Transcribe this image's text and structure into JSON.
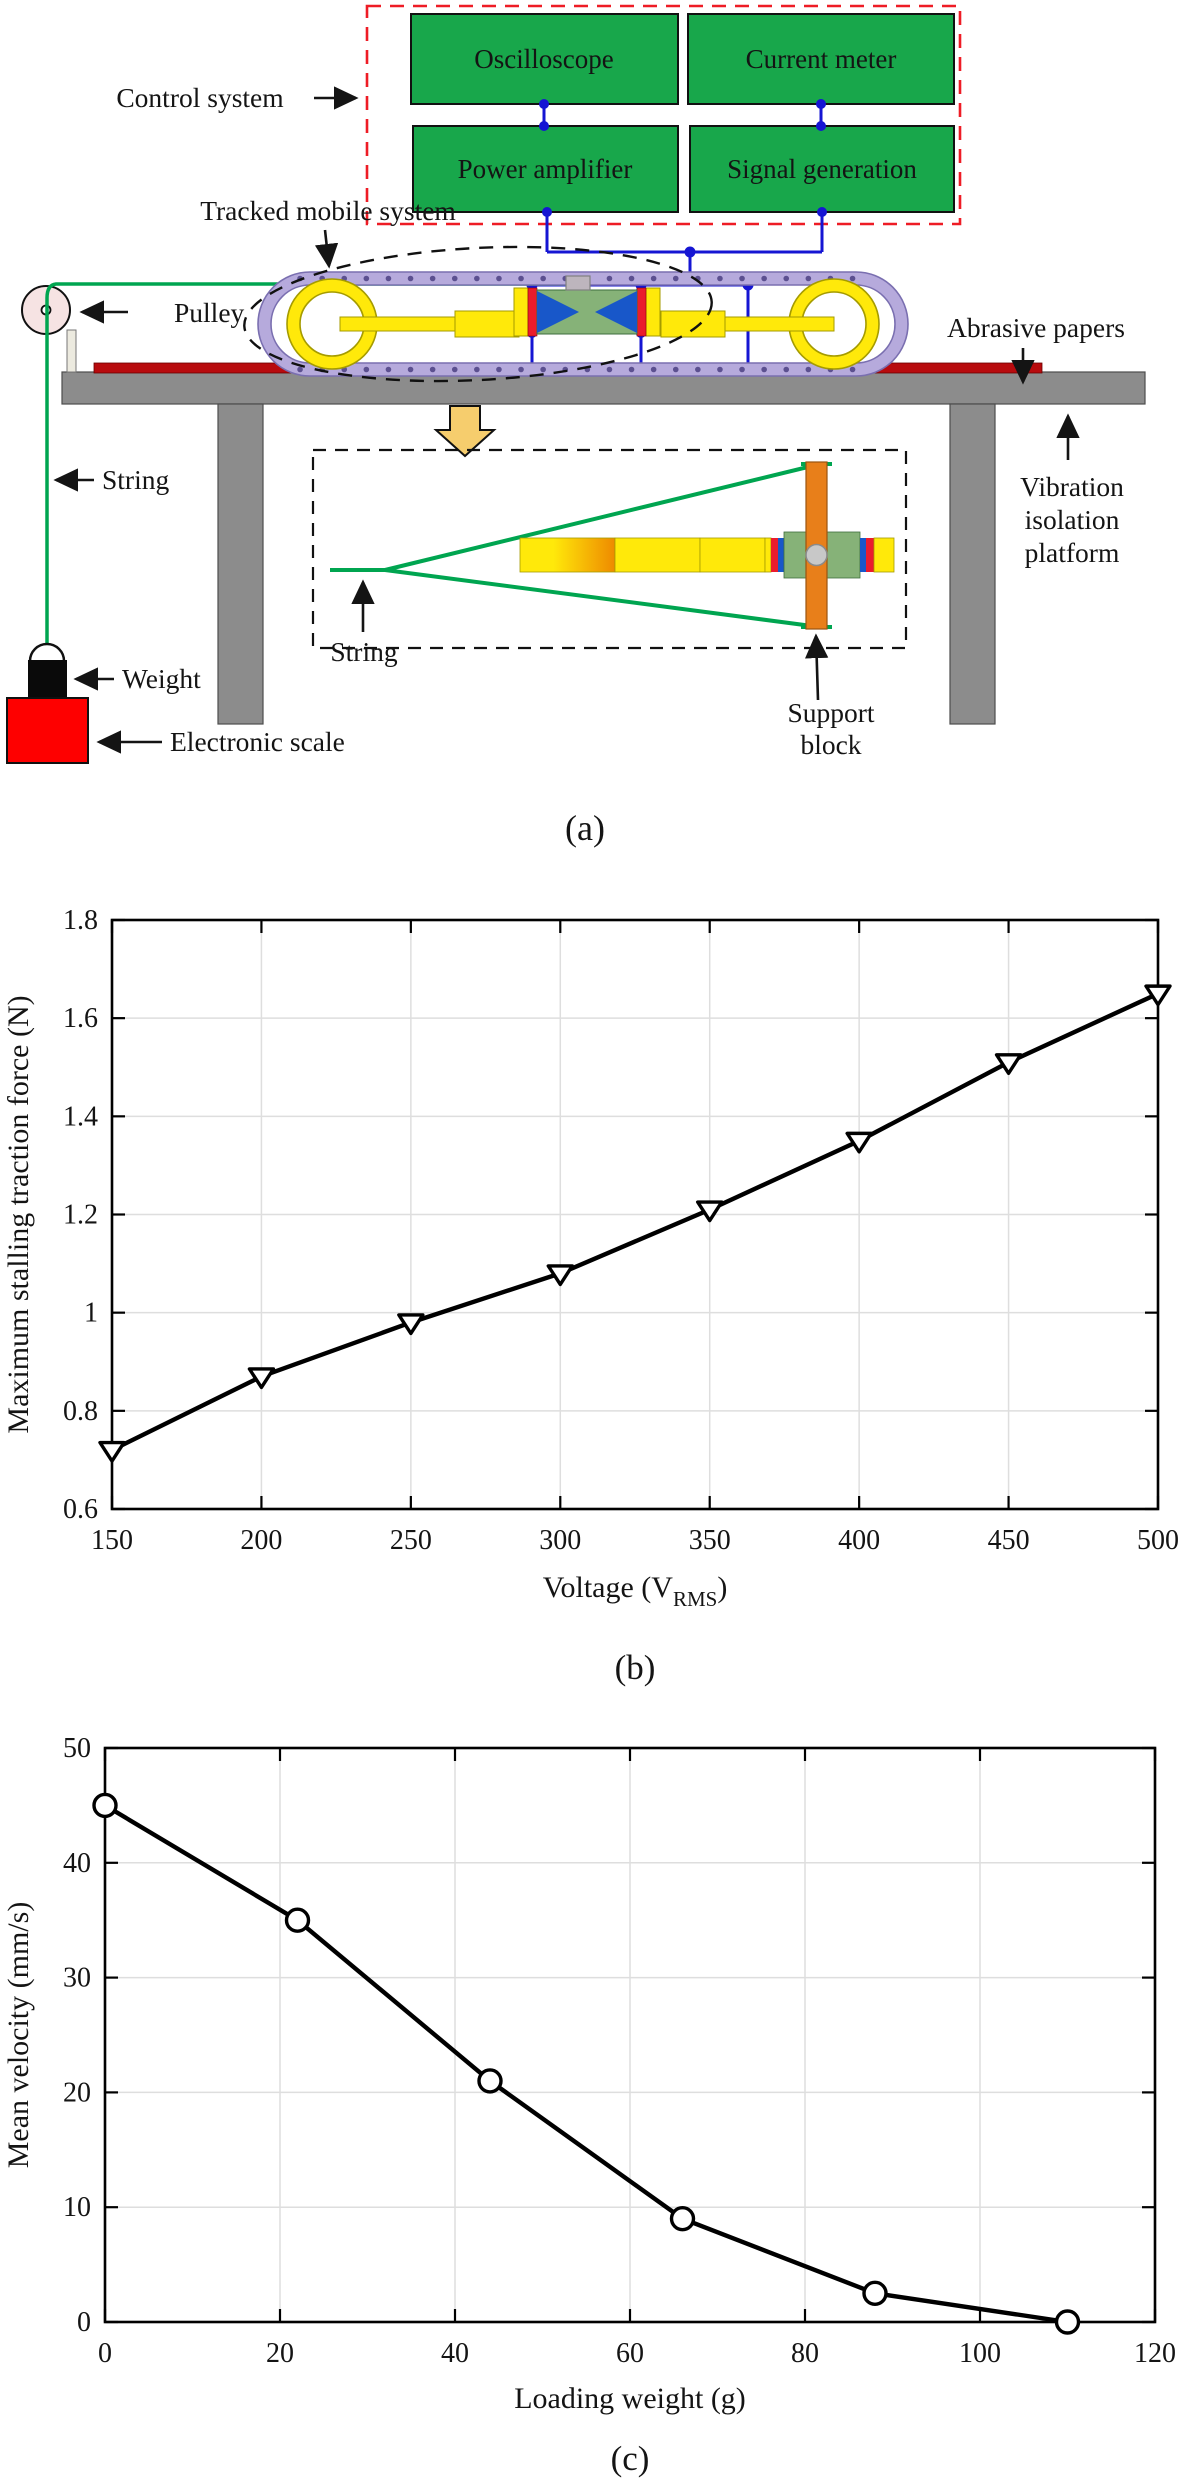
{
  "panel_a": {
    "control_system": "Control system",
    "boxes": {
      "oscilloscope": "Oscilloscope",
      "current_meter": "Current meter",
      "power_amplifier": "Power amplifier",
      "signal_generation": "Signal generation"
    },
    "labels": {
      "tracked_mobile_system": "Tracked mobile system",
      "pulley": "Pulley",
      "string": "String",
      "weight": "Weight",
      "electronic_scale": "Electronic scale",
      "abrasive_papers": "Abrasive papers",
      "vibration_1": "Vibration",
      "vibration_2": "isolation",
      "vibration_3": "platform",
      "inset_string": "String",
      "support_1": "Support",
      "support_2": "block"
    },
    "caption": "(a)",
    "colors": {
      "box_green": "#18a74b",
      "dashed_red": "#ee1c25",
      "wire_blue": "#1515d3",
      "track_purple": "#b6aadc",
      "string_green": "#00a550",
      "shaft_yellow": "#ffe90a",
      "actuator_green": "#86b278",
      "actuator_blue": "#1857c9",
      "piezo_red": "#ea1c2d",
      "platform_gray": "#8c8c8c",
      "abrasive_red": "#b80b0e",
      "scale_red": "#fe0000",
      "support_orange": "#e87f1a",
      "arrow_tan": "#f6cd6d"
    }
  },
  "chart_data": [
    {
      "id": "b",
      "type": "line",
      "marker": "triangle-down",
      "x": [
        150,
        200,
        250,
        300,
        350,
        400,
        450,
        500
      ],
      "y": [
        0.72,
        0.87,
        0.98,
        1.08,
        1.21,
        1.35,
        1.51,
        1.65
      ],
      "xlim": [
        150,
        500
      ],
      "ylim": [
        0.6,
        1.8
      ],
      "xticks": [
        150,
        200,
        250,
        300,
        350,
        400,
        450,
        500
      ],
      "xtick_labels": [
        "150",
        "200",
        "250",
        "300",
        "350",
        "400",
        "450",
        "500"
      ],
      "yticks": [
        0.6,
        0.8,
        1.0,
        1.2,
        1.4,
        1.6,
        1.8
      ],
      "ytick_labels": [
        "0.6",
        "0.8",
        "1",
        "1.2",
        "1.4",
        "1.6",
        "1.8"
      ],
      "xlabel": {
        "pre": "Voltage (V",
        "sub": "RMS",
        "post": ")"
      },
      "ylabel": "Maximum stalling traction force (N)",
      "caption": "(b)",
      "grid": true,
      "legend_position": "none",
      "line_color": "#000000"
    },
    {
      "id": "c",
      "type": "line",
      "marker": "circle",
      "x": [
        0,
        22,
        44,
        66,
        88,
        110
      ],
      "y": [
        45,
        35,
        21,
        9,
        2.5,
        0
      ],
      "xlim": [
        0,
        120
      ],
      "ylim": [
        0,
        50
      ],
      "xticks": [
        0,
        20,
        40,
        60,
        80,
        100,
        120
      ],
      "xtick_labels": [
        "0",
        "20",
        "40",
        "60",
        "80",
        "100",
        "120"
      ],
      "yticks": [
        0,
        10,
        20,
        30,
        40,
        50
      ],
      "ytick_labels": [
        "0",
        "10",
        "20",
        "30",
        "40",
        "50"
      ],
      "xlabel": {
        "pre": "Loading weight (g)",
        "sub": "",
        "post": ""
      },
      "ylabel": "Mean velocity (mm/s)",
      "caption": "(c)",
      "grid": true,
      "legend_position": "none",
      "line_color": "#000000"
    }
  ]
}
